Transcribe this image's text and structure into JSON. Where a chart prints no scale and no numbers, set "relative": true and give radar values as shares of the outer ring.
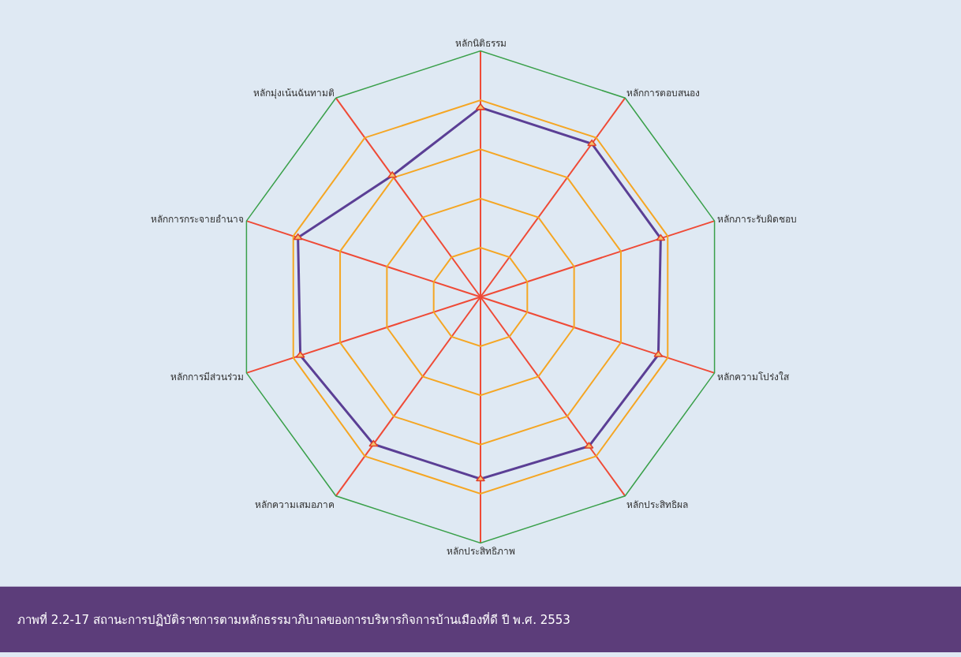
{
  "chart_data": {
    "type": "radar",
    "relative": true,
    "categories": [
      "หลักนิติธรรม",
      "หลักการตอบสนอง",
      "หลักภาระรับผิดชอบ",
      "หลักความโปร่งใส",
      "หลักประสิทธิผล",
      "หลักประสิทธิภาพ",
      "หลักความเสมอภาค",
      "หลักการมีส่วนร่วม",
      "หลักการกระจายอำนาจ",
      "หลักมุ่งเน้นฉันทามติ"
    ],
    "series": [
      {
        "color": "#5b3f95",
        "values": [
          0.77,
          0.77,
          0.77,
          0.76,
          0.75,
          0.74,
          0.74,
          0.77,
          0.78,
          0.61
        ]
      }
    ],
    "marker": "triangle",
    "grid": true,
    "annotations": [
      "ภาพที่ 2.2-17 สถานะการปฏิบัติราชการตามหลักธรรมาภิบาลของการบริหารกิจการบ้านเมืองที่ดี ปี พ.ศ. 2553"
    ]
  }
}
